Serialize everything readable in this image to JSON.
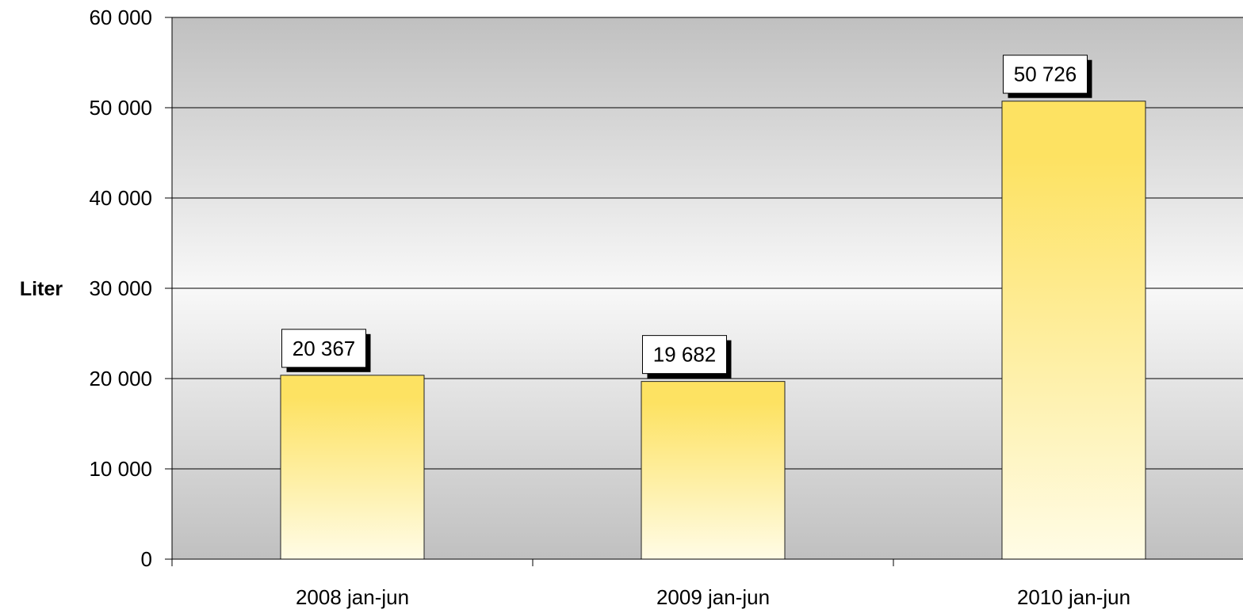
{
  "chart_data": {
    "type": "bar",
    "categories": [
      "2008 jan-jun",
      "2009 jan-jun",
      "2010 jan-jun"
    ],
    "values": [
      20367,
      19682,
      50726
    ],
    "data_labels": [
      "20 367",
      "19 682",
      "50 726"
    ],
    "ylabel": "Liter",
    "ylim": [
      0,
      60000
    ],
    "y_ticks": [
      0,
      10000,
      20000,
      30000,
      40000,
      50000,
      60000
    ],
    "y_tick_labels": [
      "0",
      "10 000",
      "20 000",
      "30 000",
      "40 000",
      "50 000",
      "60 000"
    ],
    "grid": true,
    "legend": "none",
    "colors": {
      "bar_top": "#fde262",
      "bar_bottom": "#fffce6",
      "bar_stroke": "#222222",
      "plot_bg_outer": "#c0c0c0",
      "plot_bg_inner": "#f8f8f8",
      "grid": "#000000"
    }
  }
}
